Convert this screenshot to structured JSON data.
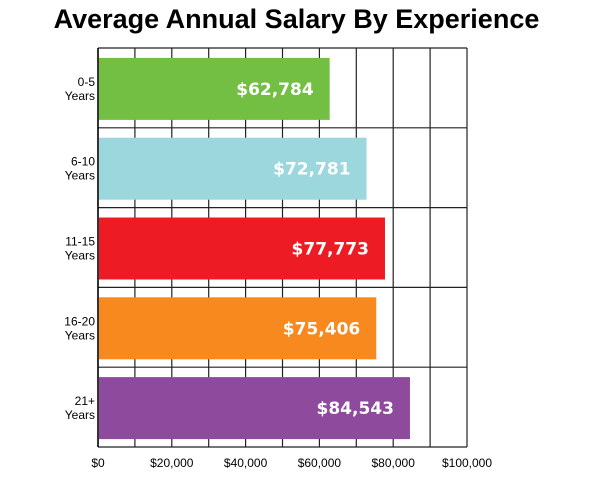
{
  "chart_data": {
    "type": "bar",
    "orientation": "horizontal",
    "title": "Average Annual Salary By Experience",
    "xlabel": "",
    "ylabel": "",
    "categories": [
      [
        "0-5",
        "Years"
      ],
      [
        "6-10",
        "Years"
      ],
      [
        "11-15",
        "Years"
      ],
      [
        "16-20",
        "Years"
      ],
      [
        "21+",
        "Years"
      ]
    ],
    "values": [
      62784,
      72781,
      77773,
      75406,
      84543
    ],
    "value_labels": [
      "$62,784",
      "$72,781",
      "$77,773",
      "$75,406",
      "$84,543"
    ],
    "colors": [
      "#72bf44",
      "#9dd7de",
      "#ed1c24",
      "#f7891f",
      "#8e4b9e"
    ],
    "xlim": [
      0,
      100000
    ],
    "x_ticks": [
      0,
      20000,
      40000,
      60000,
      80000,
      100000
    ],
    "x_tick_labels": [
      "$0",
      "$20,000",
      "$40,000",
      "$60,000",
      "$80,000",
      "$100,000"
    ],
    "grid": true,
    "legend": "none"
  }
}
